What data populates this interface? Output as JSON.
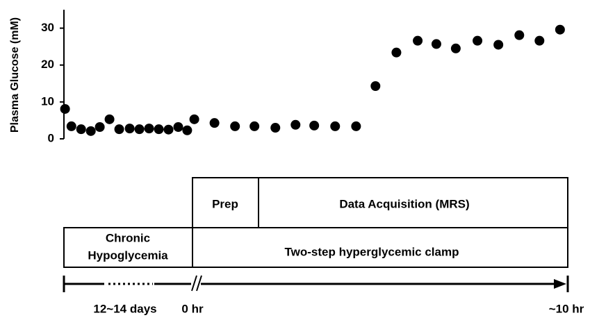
{
  "chart_data": {
    "type": "scatter",
    "y_label": "Plasma Glucose (mM)",
    "color": "#000000",
    "x": [
      -3.42,
      -3.25,
      -2.99,
      -2.73,
      -2.49,
      -2.23,
      -1.97,
      -1.69,
      -1.43,
      -1.17,
      -0.91,
      -0.65,
      -0.39,
      -0.15,
      0.04,
      0.58,
      1.13,
      1.65,
      2.21,
      2.75,
      3.25,
      3.81,
      4.37,
      4.89,
      5.45,
      6.02,
      6.52,
      7.04,
      7.62,
      8.18,
      8.74,
      9.28,
      9.83
    ],
    "values": [
      8.1,
      3.4,
      2.6,
      2.1,
      3.2,
      5.3,
      2.6,
      2.8,
      2.6,
      2.8,
      2.6,
      2.5,
      3.2,
      2.3,
      5.3,
      4.3,
      3.4,
      3.4,
      3.0,
      3.8,
      3.6,
      3.4,
      3.4,
      14.3,
      23.4,
      26.6,
      25.7,
      24.5,
      26.6,
      25.5,
      28.1,
      26.6,
      29.6
    ],
    "xlim": [
      -3.45,
      10
    ],
    "ylim": [
      0,
      35
    ],
    "yticks": [
      0,
      10,
      20,
      30
    ]
  },
  "diagram": {
    "prep": "Prep",
    "acquisition": "Data Acquisition (MRS)",
    "chronic": [
      "Chronic",
      "Hypoglycemia"
    ],
    "clamp": "Two-step hyperglycemic clamp",
    "timeline": {
      "start": "12~14 days",
      "zero": "0 hr",
      "end": "~10 hr"
    }
  }
}
